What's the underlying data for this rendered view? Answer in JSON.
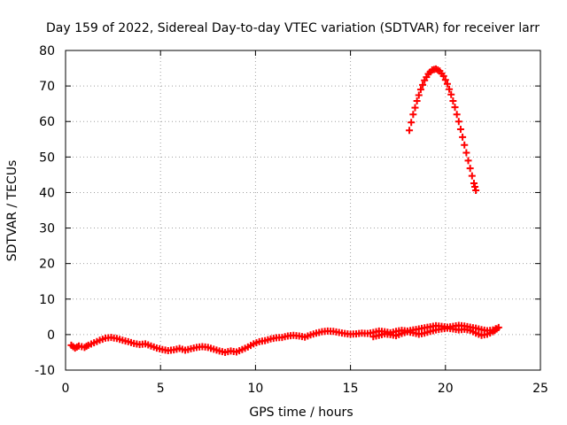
{
  "chart_data": {
    "type": "scatter",
    "title": "Day 159 of 2022, Sidereal Day-to-day VTEC variation (SDTVAR) for receiver larr",
    "xlabel": "GPS time / hours",
    "ylabel": "SDTVAR / TECUs",
    "xlim": [
      0,
      25
    ],
    "ylim": [
      -10,
      80
    ],
    "x_ticks": [
      0,
      5,
      10,
      15,
      20,
      25
    ],
    "y_ticks": [
      -10,
      0,
      10,
      20,
      30,
      40,
      50,
      60,
      70,
      80
    ],
    "grid": true,
    "marker": "plus",
    "colors": {
      "series": "#ff0000",
      "grid": "#a0a0a0",
      "axes": "#000000"
    },
    "series": [
      {
        "points": [
          [
            0.3,
            -3.0
          ],
          [
            0.5,
            -3.8
          ],
          [
            0.7,
            -3.2
          ],
          [
            1.0,
            -3.6
          ],
          [
            1.2,
            -3.0
          ],
          [
            1.5,
            -2.3
          ],
          [
            1.8,
            -1.6
          ],
          [
            2.1,
            -1.0
          ],
          [
            2.4,
            -0.8
          ],
          [
            2.7,
            -1.1
          ],
          [
            3.0,
            -1.6
          ],
          [
            3.3,
            -2.0
          ],
          [
            3.6,
            -2.5
          ],
          [
            3.9,
            -2.8
          ],
          [
            4.2,
            -2.6
          ],
          [
            4.5,
            -3.2
          ],
          [
            4.8,
            -3.8
          ],
          [
            5.1,
            -4.2
          ],
          [
            5.4,
            -4.5
          ],
          [
            5.7,
            -4.3
          ],
          [
            6.0,
            -3.9
          ],
          [
            6.3,
            -4.4
          ],
          [
            6.6,
            -4.0
          ],
          [
            6.9,
            -3.6
          ],
          [
            7.2,
            -3.4
          ],
          [
            7.5,
            -3.6
          ],
          [
            7.8,
            -4.1
          ],
          [
            8.1,
            -4.6
          ],
          [
            8.4,
            -5.0
          ],
          [
            8.7,
            -4.6
          ],
          [
            9.0,
            -4.9
          ],
          [
            9.3,
            -4.2
          ],
          [
            9.6,
            -3.5
          ],
          [
            9.9,
            -2.6
          ],
          [
            10.2,
            -2.0
          ],
          [
            10.5,
            -1.7
          ],
          [
            10.8,
            -1.2
          ],
          [
            11.1,
            -0.9
          ],
          [
            11.4,
            -0.8
          ],
          [
            11.7,
            -0.4
          ],
          [
            12.0,
            -0.2
          ],
          [
            12.3,
            -0.4
          ],
          [
            12.6,
            -0.7
          ],
          [
            12.9,
            -0.1
          ],
          [
            13.2,
            0.4
          ],
          [
            13.5,
            0.8
          ],
          [
            13.8,
            1.0
          ],
          [
            14.1,
            0.9
          ],
          [
            14.4,
            0.6
          ],
          [
            14.7,
            0.3
          ],
          [
            15.0,
            0.1
          ],
          [
            15.3,
            0.2
          ],
          [
            15.6,
            0.4
          ],
          [
            15.9,
            0.3
          ],
          [
            16.2,
            0.6
          ],
          [
            16.5,
            1.0
          ],
          [
            16.8,
            0.8
          ],
          [
            17.1,
            0.5
          ],
          [
            17.4,
            0.9
          ],
          [
            17.7,
            1.2
          ],
          [
            18.0,
            1.0
          ],
          [
            18.3,
            1.3
          ],
          [
            18.6,
            1.6
          ],
          [
            18.9,
            1.9
          ],
          [
            19.2,
            2.2
          ],
          [
            19.5,
            2.5
          ],
          [
            19.8,
            2.3
          ],
          [
            20.1,
            2.1
          ],
          [
            20.4,
            2.3
          ],
          [
            20.7,
            2.6
          ],
          [
            21.0,
            2.4
          ],
          [
            21.3,
            2.1
          ],
          [
            21.6,
            1.8
          ],
          [
            21.9,
            1.4
          ],
          [
            22.2,
            1.1
          ],
          [
            22.5,
            1.3
          ],
          [
            22.8,
            2.0
          ]
        ]
      },
      {
        "points": [
          [
            16.2,
            -0.6
          ],
          [
            16.5,
            -0.2
          ],
          [
            16.8,
            0.2
          ],
          [
            17.1,
            0.0
          ],
          [
            17.4,
            -0.3
          ],
          [
            17.7,
            0.3
          ],
          [
            18.0,
            0.8
          ],
          [
            18.3,
            0.5
          ],
          [
            18.6,
            0.1
          ],
          [
            18.9,
            0.4
          ],
          [
            19.2,
            0.9
          ],
          [
            19.5,
            1.3
          ],
          [
            19.8,
            1.6
          ],
          [
            20.1,
            1.8
          ],
          [
            20.4,
            1.6
          ],
          [
            20.7,
            1.3
          ],
          [
            21.0,
            1.5
          ],
          [
            21.3,
            1.2
          ],
          [
            21.6,
            0.4
          ],
          [
            21.9,
            -0.2
          ],
          [
            22.2,
            0.1
          ],
          [
            22.5,
            0.8
          ],
          [
            22.7,
            1.6
          ]
        ]
      },
      {
        "points": [
          [
            18.1,
            57.5
          ],
          [
            18.3,
            62.0
          ],
          [
            18.5,
            65.8
          ],
          [
            18.7,
            69.0
          ],
          [
            18.9,
            71.6
          ],
          [
            19.1,
            73.4
          ],
          [
            19.3,
            74.5
          ],
          [
            19.5,
            74.8
          ],
          [
            19.7,
            74.2
          ],
          [
            19.9,
            72.8
          ],
          [
            20.1,
            70.6
          ],
          [
            20.3,
            67.6
          ],
          [
            20.5,
            64.0
          ],
          [
            20.7,
            60.0
          ],
          [
            20.9,
            55.6
          ],
          [
            21.1,
            51.2
          ],
          [
            21.3,
            46.8
          ],
          [
            21.5,
            42.6
          ],
          [
            21.6,
            40.6
          ]
        ]
      }
    ]
  }
}
